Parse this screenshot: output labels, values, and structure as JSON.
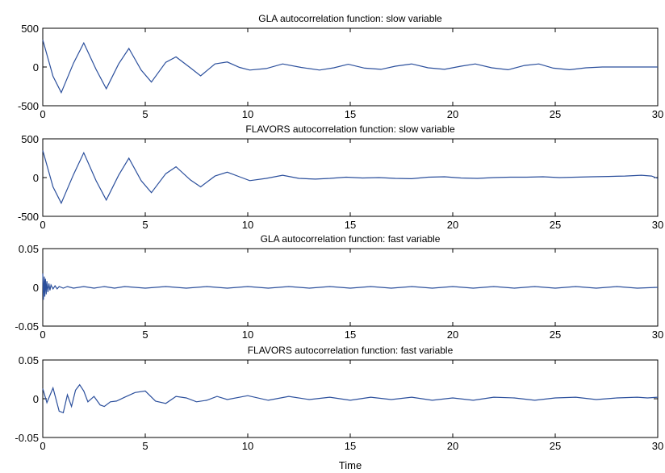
{
  "figure": {
    "xlabel": "Time"
  },
  "chart_data": [
    {
      "type": "line",
      "title": "GLA autocorrelation function: slow variable",
      "xlabel": "",
      "ylabel": "",
      "xlim": [
        0,
        30
      ],
      "ylim": [
        -500,
        500
      ],
      "x_ticks": [
        "0",
        "5",
        "10",
        "15",
        "20",
        "25",
        "30"
      ],
      "y_ticks": [
        "500",
        "0",
        "-500"
      ],
      "grid": false,
      "line_color": "#2b4f9c",
      "series": [
        {
          "x": [
            0,
            0.5,
            0.9,
            1.5,
            2.0,
            2.6,
            3.1,
            3.7,
            4.2,
            4.8,
            5.3,
            6.0,
            6.5,
            7.2,
            7.7,
            8.4,
            9.0,
            9.6,
            10.1,
            10.9,
            11.7,
            12.6,
            13.5,
            14.2,
            14.9,
            15.7,
            16.5,
            17.2,
            18.0,
            18.8,
            19.6,
            20.4,
            21.1,
            21.9,
            22.7,
            23.5,
            24.2,
            24.9,
            25.7,
            26.5,
            27.3,
            28.0,
            28.8,
            29.5,
            30.0
          ],
          "y": [
            350,
            -120,
            -330,
            50,
            310,
            -30,
            -280,
            40,
            240,
            -40,
            -195,
            60,
            130,
            -10,
            -115,
            40,
            65,
            -5,
            -40,
            -20,
            40,
            -5,
            -40,
            -10,
            35,
            -15,
            -30,
            10,
            40,
            -10,
            -30,
            10,
            40,
            -10,
            -35,
            20,
            40,
            -15,
            -35,
            -10,
            0,
            0,
            0,
            0,
            0
          ]
        }
      ]
    },
    {
      "type": "line",
      "title": "FLAVORS autocorrelation function: slow variable",
      "xlabel": "",
      "ylabel": "",
      "xlim": [
        0,
        30
      ],
      "ylim": [
        -500,
        500
      ],
      "x_ticks": [
        "0",
        "5",
        "10",
        "15",
        "20",
        "25",
        "30"
      ],
      "y_ticks": [
        "500",
        "0",
        "-500"
      ],
      "grid": false,
      "line_color": "#2b4f9c",
      "series": [
        {
          "x": [
            0,
            0.5,
            0.9,
            1.5,
            2.0,
            2.6,
            3.1,
            3.7,
            4.2,
            4.8,
            5.3,
            6.0,
            6.5,
            7.2,
            7.7,
            8.4,
            9.0,
            9.6,
            10.1,
            10.9,
            11.7,
            12.5,
            13.3,
            14.0,
            14.8,
            15.6,
            16.4,
            17.2,
            18.0,
            18.8,
            19.6,
            20.4,
            21.2,
            22.0,
            22.8,
            23.6,
            24.4,
            25.2,
            26.0,
            26.8,
            27.6,
            28.4,
            29.2,
            29.7,
            30.0
          ],
          "y": [
            350,
            -120,
            -330,
            40,
            320,
            -40,
            -290,
            30,
            250,
            -40,
            -195,
            50,
            140,
            -30,
            -120,
            20,
            70,
            10,
            -40,
            -10,
            30,
            -10,
            -20,
            -10,
            5,
            -5,
            0,
            -10,
            -15,
            5,
            10,
            -5,
            -10,
            0,
            5,
            5,
            10,
            0,
            5,
            10,
            15,
            20,
            30,
            20,
            -10
          ]
        }
      ]
    },
    {
      "type": "line",
      "title": "GLA autocorrelation function: fast variable",
      "xlabel": "",
      "ylabel": "",
      "xlim": [
        0,
        30
      ],
      "ylim": [
        -0.05,
        0.05
      ],
      "x_ticks": [
        "0",
        "5",
        "10",
        "15",
        "20",
        "25",
        "30"
      ],
      "y_ticks": [
        "0.05",
        "0",
        "-0.05"
      ],
      "grid": false,
      "line_color": "#2b4f9c",
      "series": [
        {
          "x": [
            0,
            0.03,
            0.07,
            0.1,
            0.13,
            0.17,
            0.2,
            0.25,
            0.3,
            0.35,
            0.4,
            0.5,
            0.6,
            0.7,
            0.8,
            1.0,
            1.2,
            1.5,
            2.0,
            2.5,
            3.0,
            3.5,
            4.0,
            5.0,
            6.0,
            7.0,
            8.0,
            9.0,
            10.0,
            11.0,
            12.0,
            13.0,
            14.0,
            15.0,
            16.0,
            17.0,
            18.0,
            19.0,
            20.0,
            21.0,
            22.0,
            23.0,
            24.0,
            25.0,
            26.0,
            27.0,
            28.0,
            29.0,
            30.0
          ],
          "y": [
            0.018,
            -0.016,
            0.014,
            -0.012,
            0.011,
            -0.009,
            0.008,
            -0.006,
            0.005,
            -0.004,
            0.003,
            -0.002,
            0.002,
            -0.002,
            0.001,
            -0.001,
            0.001,
            -0.001,
            0.001,
            -0.001,
            0.001,
            -0.001,
            0.001,
            -0.001,
            0.001,
            -0.001,
            0.001,
            -0.001,
            0.001,
            -0.001,
            0.001,
            -0.001,
            0.001,
            -0.001,
            0.001,
            -0.001,
            0.001,
            -0.001,
            0.001,
            -0.001,
            0.001,
            -0.001,
            0.001,
            -0.001,
            0.001,
            -0.001,
            0.001,
            -0.001,
            0
          ]
        }
      ]
    },
    {
      "type": "line",
      "title": "FLAVORS autocorrelation function: fast variable",
      "xlabel": "Time",
      "ylabel": "",
      "xlim": [
        0,
        30
      ],
      "ylim": [
        -0.05,
        0.05
      ],
      "x_ticks": [
        "0",
        "5",
        "10",
        "15",
        "20",
        "25",
        "30"
      ],
      "y_ticks": [
        "0.05",
        "0",
        "-0.05"
      ],
      "grid": false,
      "line_color": "#2b4f9c",
      "series": [
        {
          "x": [
            0,
            0.2,
            0.5,
            0.8,
            1.0,
            1.2,
            1.4,
            1.6,
            1.8,
            2.0,
            2.2,
            2.5,
            2.8,
            3.0,
            3.3,
            3.6,
            4.0,
            4.5,
            5.0,
            5.5,
            6.0,
            6.5,
            7.0,
            7.5,
            8.0,
            8.5,
            9.0,
            10.0,
            11.0,
            12.0,
            13.0,
            14.0,
            15.0,
            16.0,
            17.0,
            18.0,
            19.0,
            20.0,
            21.0,
            22.0,
            23.0,
            24.0,
            25.0,
            26.0,
            27.0,
            28.0,
            29.0,
            29.5,
            30.0
          ],
          "y": [
            0.013,
            -0.005,
            0.014,
            -0.016,
            -0.018,
            0.005,
            -0.01,
            0.011,
            0.018,
            0.01,
            -0.004,
            0.003,
            -0.008,
            -0.01,
            -0.004,
            -0.003,
            0.002,
            0.008,
            0.01,
            -0.003,
            -0.006,
            0.003,
            0.001,
            -0.004,
            -0.002,
            0.003,
            -0.001,
            0.004,
            -0.002,
            0.003,
            -0.001,
            0.002,
            -0.002,
            0.002,
            -0.001,
            0.002,
            -0.002,
            0.001,
            -0.002,
            0.002,
            0.001,
            -0.002,
            0.001,
            0.002,
            -0.001,
            0.001,
            0.002,
            0.001,
            0.002
          ]
        }
      ]
    }
  ]
}
